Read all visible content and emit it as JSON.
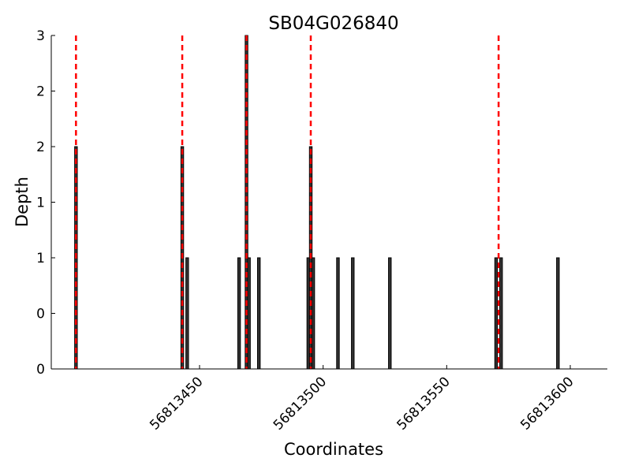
{
  "chart_data": {
    "type": "bar",
    "title": "SB04G026840",
    "xlabel": "Coordinates",
    "ylabel": "Depth",
    "xlim": [
      56813390,
      56813615
    ],
    "ylim": [
      0,
      3
    ],
    "x_ticks": [
      56813450,
      56813500,
      56813550,
      56813600
    ],
    "x_tick_labels": [
      "56813450",
      "56813500",
      "56813550",
      "56813600"
    ],
    "y_ticks": [
      0,
      0.5,
      1,
      1.5,
      2,
      2.5,
      3
    ],
    "y_tick_labels": [
      "0",
      "0",
      "1",
      "1",
      "2",
      "2",
      "3"
    ],
    "bar_color": "#333333",
    "bar_edge_color": "#000000",
    "marker_color": "#ff0000",
    "bars": [
      {
        "x": 56813400,
        "y": 2
      },
      {
        "x": 56813443,
        "y": 2
      },
      {
        "x": 56813445,
        "y": 1
      },
      {
        "x": 56813466,
        "y": 1
      },
      {
        "x": 56813469,
        "y": 3
      },
      {
        "x": 56813470,
        "y": 1
      },
      {
        "x": 56813474,
        "y": 1
      },
      {
        "x": 56813494,
        "y": 1
      },
      {
        "x": 56813495,
        "y": 2
      },
      {
        "x": 56813496,
        "y": 1
      },
      {
        "x": 56813506,
        "y": 1
      },
      {
        "x": 56813512,
        "y": 1
      },
      {
        "x": 56813527,
        "y": 1
      },
      {
        "x": 56813570,
        "y": 1
      },
      {
        "x": 56813572,
        "y": 1
      },
      {
        "x": 56813595,
        "y": 1
      }
    ],
    "markers": [
      56813400,
      56813443,
      56813469,
      56813495,
      56813571
    ],
    "grid": false
  }
}
